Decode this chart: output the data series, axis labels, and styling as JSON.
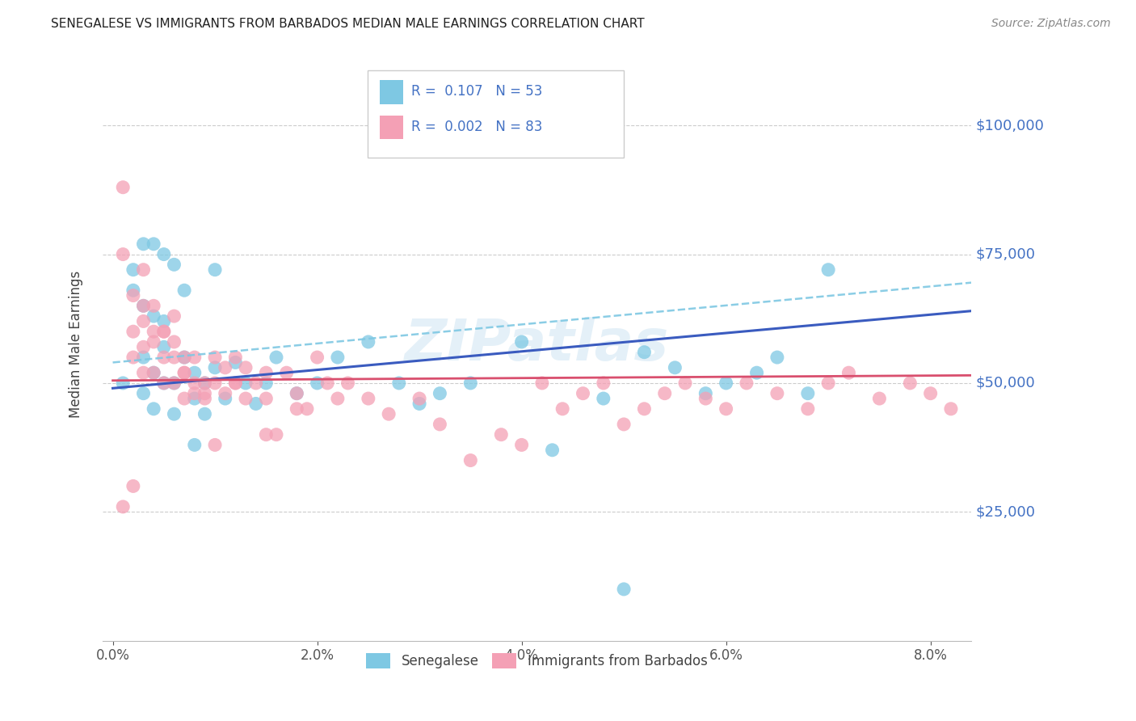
{
  "title": "SENEGALESE VS IMMIGRANTS FROM BARBADOS MEDIAN MALE EARNINGS CORRELATION CHART",
  "source": "Source: ZipAtlas.com",
  "ylabel": "Median Male Earnings",
  "xlabel_ticks": [
    "0.0%",
    "2.0%",
    "4.0%",
    "6.0%",
    "8.0%"
  ],
  "xlabel_vals": [
    0.0,
    0.02,
    0.04,
    0.06,
    0.08
  ],
  "ytick_labels": [
    "$25,000",
    "$50,000",
    "$75,000",
    "$100,000"
  ],
  "ytick_vals": [
    25000,
    50000,
    75000,
    100000
  ],
  "ylim": [
    0,
    115000
  ],
  "xlim": [
    -0.001,
    0.084
  ],
  "legend_label1": "Senegalese",
  "legend_label2": "Immigrants from Barbados",
  "R1": "0.107",
  "N1": "53",
  "R2": "0.002",
  "N2": "83",
  "color_blue": "#7ec8e3",
  "color_pink": "#f4a0b5",
  "trendline_blue_solid": "#3a5bbf",
  "trendline_pink_solid": "#d94f6e",
  "trendline_blue_dashed": "#7ec8e3",
  "watermark": "ZIPatlas",
  "blue_x": [
    0.001,
    0.002,
    0.002,
    0.003,
    0.003,
    0.003,
    0.004,
    0.004,
    0.004,
    0.005,
    0.005,
    0.005,
    0.006,
    0.006,
    0.007,
    0.007,
    0.008,
    0.008,
    0.009,
    0.009,
    0.01,
    0.01,
    0.011,
    0.012,
    0.013,
    0.014,
    0.015,
    0.016,
    0.018,
    0.02,
    0.022,
    0.025,
    0.028,
    0.03,
    0.032,
    0.035,
    0.04,
    0.043,
    0.048,
    0.05,
    0.052,
    0.055,
    0.058,
    0.06,
    0.063,
    0.065,
    0.068,
    0.07,
    0.003,
    0.004,
    0.005,
    0.006,
    0.008
  ],
  "blue_y": [
    50000,
    72000,
    68000,
    65000,
    55000,
    48000,
    63000,
    52000,
    45000,
    62000,
    57000,
    50000,
    50000,
    44000,
    68000,
    55000,
    52000,
    47000,
    50000,
    44000,
    72000,
    53000,
    47000,
    54000,
    50000,
    46000,
    50000,
    55000,
    48000,
    50000,
    55000,
    58000,
    50000,
    46000,
    48000,
    50000,
    58000,
    37000,
    47000,
    10000,
    56000,
    53000,
    48000,
    50000,
    52000,
    55000,
    48000,
    72000,
    77000,
    77000,
    75000,
    73000,
    38000
  ],
  "pink_x": [
    0.001,
    0.001,
    0.002,
    0.002,
    0.002,
    0.003,
    0.003,
    0.003,
    0.003,
    0.004,
    0.004,
    0.004,
    0.005,
    0.005,
    0.005,
    0.006,
    0.006,
    0.006,
    0.007,
    0.007,
    0.007,
    0.008,
    0.008,
    0.009,
    0.009,
    0.01,
    0.01,
    0.011,
    0.011,
    0.012,
    0.012,
    0.013,
    0.013,
    0.014,
    0.015,
    0.015,
    0.016,
    0.017,
    0.018,
    0.019,
    0.02,
    0.021,
    0.022,
    0.023,
    0.025,
    0.027,
    0.03,
    0.032,
    0.035,
    0.038,
    0.04,
    0.042,
    0.044,
    0.046,
    0.048,
    0.05,
    0.052,
    0.054,
    0.056,
    0.058,
    0.06,
    0.062,
    0.065,
    0.068,
    0.07,
    0.072,
    0.075,
    0.078,
    0.08,
    0.082,
    0.001,
    0.003,
    0.004,
    0.005,
    0.006,
    0.007,
    0.008,
    0.009,
    0.01,
    0.002,
    0.012,
    0.015,
    0.018
  ],
  "pink_y": [
    88000,
    26000,
    67000,
    60000,
    55000,
    65000,
    62000,
    57000,
    52000,
    60000,
    58000,
    52000,
    60000,
    55000,
    50000,
    63000,
    58000,
    50000,
    55000,
    52000,
    47000,
    48000,
    55000,
    50000,
    47000,
    55000,
    50000,
    53000,
    48000,
    55000,
    50000,
    53000,
    47000,
    50000,
    52000,
    47000,
    40000,
    52000,
    48000,
    45000,
    55000,
    50000,
    47000,
    50000,
    47000,
    44000,
    47000,
    42000,
    35000,
    40000,
    38000,
    50000,
    45000,
    48000,
    50000,
    42000,
    45000,
    48000,
    50000,
    47000,
    45000,
    50000,
    48000,
    45000,
    50000,
    52000,
    47000,
    50000,
    48000,
    45000,
    75000,
    72000,
    65000,
    60000,
    55000,
    52000,
    50000,
    48000,
    38000,
    30000,
    50000,
    40000,
    45000
  ]
}
